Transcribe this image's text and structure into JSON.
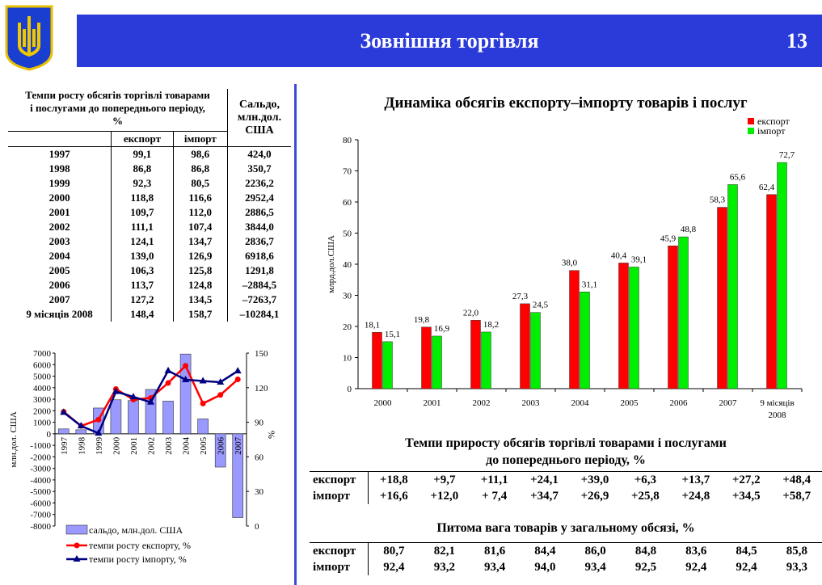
{
  "header": {
    "title": "Зовнішня торгівля",
    "page": "13",
    "logo_icon": "ukraine-coat-of-arms"
  },
  "left_table": {
    "header_main": "Темпи росту обсягів торгівлі товарами і послугами до попереднього періоду, %",
    "header_saldo": "Сальдо, млн.дол. США",
    "col_export": "експорт",
    "col_import": "імпорт",
    "rows": [
      [
        "1997",
        "99,1",
        "98,6",
        "424,0"
      ],
      [
        "1998",
        "86,8",
        "86,8",
        "350,7"
      ],
      [
        "1999",
        "92,3",
        "80,5",
        "2236,2"
      ],
      [
        "2000",
        "118,8",
        "116,6",
        "2952,4"
      ],
      [
        "2001",
        "109,7",
        "112,0",
        "2886,5"
      ],
      [
        "2002",
        "111,1",
        "107,4",
        "3844,0"
      ],
      [
        "2003",
        "124,1",
        "134,7",
        "2836,7"
      ],
      [
        "2004",
        "139,0",
        "126,9",
        "6918,6"
      ],
      [
        "2005",
        "106,3",
        "125,8",
        "1291,8"
      ],
      [
        "2006",
        "113,7",
        "124,8",
        "–2884,5"
      ],
      [
        "2007",
        "127,2",
        "134,5",
        "–7263,7"
      ],
      [
        "9 місяців 2008",
        "148,4",
        "158,7",
        "–10284,1"
      ]
    ]
  },
  "chart_data": [
    {
      "type": "bar",
      "title": "Динаміка обсягів експорту–імпорту товарів і послуг",
      "ylabel": "млрд.дол.США",
      "ylim": [
        0,
        80
      ],
      "yticks": [
        0,
        10,
        20,
        30,
        40,
        50,
        60,
        70,
        80
      ],
      "categories": [
        "2000",
        "2001",
        "2002",
        "2003",
        "2004",
        "2005",
        "2006",
        "2007",
        "9 місяців 2008"
      ],
      "series": [
        {
          "name": "експорт",
          "color": "#ff0000",
          "values": [
            18.1,
            19.8,
            22.0,
            27.3,
            38.0,
            40.4,
            45.9,
            58.3,
            62.4
          ],
          "labels": [
            "18,1",
            "19,8",
            "22,0",
            "27,3",
            "38,0",
            "40,4",
            "45,9",
            "58,3",
            "62,4"
          ]
        },
        {
          "name": "імпорт",
          "color": "#00ee00",
          "values": [
            15.1,
            16.9,
            18.2,
            24.5,
            31.1,
            39.1,
            48.8,
            65.6,
            72.7
          ],
          "labels": [
            "15,1",
            "16,9",
            "18,2",
            "24,5",
            "31,1",
            "39,1",
            "48,8",
            "65,6",
            "72,7"
          ]
        }
      ],
      "legend": "top-right"
    },
    {
      "type": "bar+line",
      "ylabel": "млн.дол. США",
      "y2label": "%",
      "ylim": [
        -8000,
        7000
      ],
      "y2lim": [
        0,
        150
      ],
      "yticks": [
        7000,
        6000,
        5000,
        4000,
        3000,
        2000,
        1000,
        0,
        -1000,
        -2000,
        -3000,
        -4000,
        -5000,
        -6000,
        -7000,
        -8000
      ],
      "y2ticks": [
        150,
        120,
        90,
        60,
        30,
        0
      ],
      "categories": [
        "1997",
        "1998",
        "1999",
        "2000",
        "2001",
        "2002",
        "2003",
        "2004",
        "2005",
        "2006",
        "2007"
      ],
      "bars": {
        "name": "сальдо, млн.дол. США",
        "color": "#9999ff",
        "values": [
          424.0,
          350.7,
          2236.2,
          2952.4,
          2886.5,
          3844.0,
          2836.7,
          6918.6,
          1291.8,
          -2884.5,
          -7263.7
        ]
      },
      "lines": [
        {
          "name": "темпи росту експорту, %",
          "color": "#ff0000",
          "marker": "circle",
          "values": [
            99.1,
            86.8,
            92.3,
            118.8,
            109.7,
            111.1,
            124.1,
            139.0,
            106.3,
            113.7,
            127.2
          ]
        },
        {
          "name": "темпи росту імпорту, %",
          "color": "#000080",
          "marker": "triangle",
          "values": [
            98.6,
            86.8,
            80.5,
            116.6,
            112.0,
            107.4,
            134.7,
            126.9,
            125.8,
            124.8,
            134.5
          ]
        }
      ],
      "legend": "bottom"
    }
  ],
  "growth_table": {
    "title1": "Темпи  приросту обсягів торгівлі товарами і послугами",
    "title2": "до попереднього періоду, %",
    "rows": [
      [
        "експорт",
        "+18,8",
        "+9,7",
        "+11,1",
        "+24,1",
        "+39,0",
        "+6,3",
        "+13,7",
        "+27,2",
        "+48,4"
      ],
      [
        "імпорт",
        "+16,6",
        "+12,0",
        "+ 7,4",
        "+34,7",
        "+26,9",
        "+25,8",
        "+24,8",
        "+34,5",
        "+58,7"
      ]
    ]
  },
  "share_table": {
    "title": "Питома вага товарів у загальному обсязі, %",
    "rows": [
      [
        "експорт",
        "80,7",
        "82,1",
        "81,6",
        "84,4",
        "86,0",
        "84,8",
        "83,6",
        "84,5",
        "85,8"
      ],
      [
        "імпорт",
        "92,4",
        "93,2",
        "93,4",
        "94,0",
        "93,4",
        "92,5",
        "92,4",
        "92,4",
        "93,3"
      ]
    ]
  }
}
